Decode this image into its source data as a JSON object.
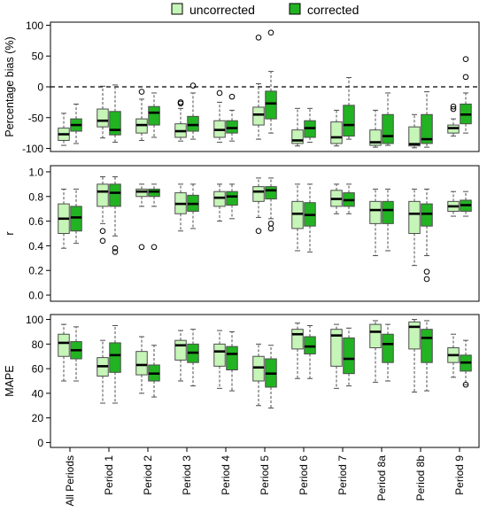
{
  "colors": {
    "uncorrected": "#c6f5b8",
    "corrected": "#22b322",
    "stroke": "#000000",
    "box_stroke": "#4d4d4d",
    "refline": "#000000"
  },
  "legend": {
    "position": "top-center",
    "items": [
      {
        "label": "uncorrected",
        "color_key": "uncorrected"
      },
      {
        "label": "corrected",
        "color_key": "corrected"
      }
    ]
  },
  "chart_data": [
    {
      "type": "boxplot",
      "id": "bias",
      "ylabel": "Percentage bias (%)",
      "xlabel": "",
      "ylim": [
        -105,
        105
      ],
      "yticks": [
        -100,
        -50,
        0,
        50,
        100
      ],
      "grid": false,
      "reference_line": {
        "y": 0,
        "style": "dashed"
      },
      "categories": [
        "All Periods",
        "Period 1",
        "Period 2",
        "Period 3",
        "Period 4",
        "Period 5",
        "Period 6",
        "Period 7",
        "Period 8a",
        "Period 8b",
        "Period 9"
      ],
      "series": [
        {
          "name": "uncorrected",
          "boxes": [
            {
              "min": -95,
              "q1": -87,
              "median": -77,
              "q3": -67,
              "max": -43,
              "outliers": []
            },
            {
              "min": -83,
              "q1": -65,
              "median": -55,
              "q3": -36,
              "max": 1,
              "outliers": []
            },
            {
              "min": -87,
              "q1": -75,
              "median": -62,
              "q3": -52,
              "max": -20,
              "outliers": [
                -8
              ]
            },
            {
              "min": -88,
              "q1": -82,
              "median": -72,
              "q3": -60,
              "max": -35,
              "outliers": [
                -25,
                -27
              ]
            },
            {
              "min": -90,
              "q1": -82,
              "median": -70,
              "q3": -55,
              "max": -25,
              "outliers": [
                -10
              ]
            },
            {
              "min": -85,
              "q1": -62,
              "median": -45,
              "q3": -33,
              "max": 5,
              "outliers": [
                80
              ]
            },
            {
              "min": -96,
              "q1": -92,
              "median": -87,
              "q3": -70,
              "max": -35,
              "outliers": []
            },
            {
              "min": -96,
              "q1": -92,
              "median": -82,
              "q3": -57,
              "max": -38,
              "outliers": []
            },
            {
              "min": -98,
              "q1": -95,
              "median": -90,
              "q3": -70,
              "max": -38,
              "outliers": []
            },
            {
              "min": -99,
              "q1": -96,
              "median": -93,
              "q3": -65,
              "max": -45,
              "outliers": []
            },
            {
              "min": -80,
              "q1": -75,
              "median": -67,
              "q3": -62,
              "max": -52,
              "outliers": [
                -32,
                -36
              ]
            }
          ]
        },
        {
          "name": "corrected",
          "boxes": [
            {
              "min": -92,
              "q1": -72,
              "median": -62,
              "q3": -52,
              "max": -28,
              "outliers": []
            },
            {
              "min": -90,
              "q1": -78,
              "median": -70,
              "q3": -40,
              "max": 3,
              "outliers": []
            },
            {
              "min": -82,
              "q1": -62,
              "median": -42,
              "q3": -32,
              "max": -10,
              "outliers": []
            },
            {
              "min": -85,
              "q1": -72,
              "median": -62,
              "q3": -48,
              "max": -10,
              "outliers": [
                2
              ]
            },
            {
              "min": -88,
              "q1": -75,
              "median": -67,
              "q3": -55,
              "max": -38,
              "outliers": [
                -16
              ]
            },
            {
              "min": -75,
              "q1": -52,
              "median": -27,
              "q3": -7,
              "max": 25,
              "outliers": [
                88
              ]
            },
            {
              "min": -90,
              "q1": -82,
              "median": -67,
              "q3": -55,
              "max": -35,
              "outliers": []
            },
            {
              "min": -85,
              "q1": -80,
              "median": -62,
              "q3": -30,
              "max": 15,
              "outliers": []
            },
            {
              "min": -95,
              "q1": -92,
              "median": -80,
              "q3": -45,
              "max": -10,
              "outliers": []
            },
            {
              "min": -98,
              "q1": -92,
              "median": -85,
              "q3": -45,
              "max": -8,
              "outliers": []
            },
            {
              "min": -75,
              "q1": -60,
              "median": -45,
              "q3": -28,
              "max": -10,
              "outliers": [
                16,
                45
              ]
            }
          ]
        }
      ]
    },
    {
      "type": "boxplot",
      "id": "r",
      "ylabel": "r",
      "xlabel": "",
      "ylim": [
        -0.05,
        1.05
      ],
      "yticks": [
        0.0,
        0.2,
        0.4,
        0.6,
        0.8,
        1.0
      ],
      "grid": false,
      "categories": [
        "All Periods",
        "Period 1",
        "Period 2",
        "Period 3",
        "Period 4",
        "Period 5",
        "Period 6",
        "Period 7",
        "Period 8a",
        "Period 8b",
        "Period 9"
      ],
      "series": [
        {
          "name": "uncorrected",
          "boxes": [
            {
              "min": 0.38,
              "q1": 0.5,
              "median": 0.62,
              "q3": 0.74,
              "max": 0.86,
              "outliers": []
            },
            {
              "min": 0.58,
              "q1": 0.72,
              "median": 0.84,
              "q3": 0.9,
              "max": 0.96,
              "outliers": [
                0.52,
                0.44
              ]
            },
            {
              "min": 0.72,
              "q1": 0.8,
              "median": 0.84,
              "q3": 0.86,
              "max": 0.9,
              "outliers": [
                0.39
              ]
            },
            {
              "min": 0.52,
              "q1": 0.66,
              "median": 0.74,
              "q3": 0.83,
              "max": 0.9,
              "outliers": []
            },
            {
              "min": 0.6,
              "q1": 0.72,
              "median": 0.79,
              "q3": 0.84,
              "max": 0.9,
              "outliers": []
            },
            {
              "min": 0.63,
              "q1": 0.76,
              "median": 0.84,
              "q3": 0.88,
              "max": 0.95,
              "outliers": [
                0.52
              ]
            },
            {
              "min": 0.36,
              "q1": 0.54,
              "median": 0.66,
              "q3": 0.76,
              "max": 0.9,
              "outliers": []
            },
            {
              "min": 0.66,
              "q1": 0.72,
              "median": 0.78,
              "q3": 0.85,
              "max": 0.9,
              "outliers": []
            },
            {
              "min": 0.32,
              "q1": 0.58,
              "median": 0.69,
              "q3": 0.76,
              "max": 0.86,
              "outliers": []
            },
            {
              "min": 0.24,
              "q1": 0.5,
              "median": 0.66,
              "q3": 0.76,
              "max": 0.86,
              "outliers": []
            },
            {
              "min": 0.64,
              "q1": 0.68,
              "median": 0.72,
              "q3": 0.76,
              "max": 0.84,
              "outliers": []
            }
          ]
        },
        {
          "name": "corrected",
          "boxes": [
            {
              "min": 0.42,
              "q1": 0.52,
              "median": 0.63,
              "q3": 0.72,
              "max": 0.86,
              "outliers": []
            },
            {
              "min": 0.48,
              "q1": 0.72,
              "median": 0.83,
              "q3": 0.9,
              "max": 0.96,
              "outliers": [
                0.38,
                0.35
              ]
            },
            {
              "min": 0.72,
              "q1": 0.8,
              "median": 0.84,
              "q3": 0.86,
              "max": 0.9,
              "outliers": [
                0.39
              ]
            },
            {
              "min": 0.54,
              "q1": 0.68,
              "median": 0.74,
              "q3": 0.81,
              "max": 0.9,
              "outliers": []
            },
            {
              "min": 0.62,
              "q1": 0.73,
              "median": 0.8,
              "q3": 0.84,
              "max": 0.9,
              "outliers": []
            },
            {
              "min": 0.62,
              "q1": 0.78,
              "median": 0.85,
              "q3": 0.88,
              "max": 0.95,
              "outliers": [
                0.58,
                0.54
              ]
            },
            {
              "min": 0.35,
              "q1": 0.56,
              "median": 0.65,
              "q3": 0.75,
              "max": 0.9,
              "outliers": []
            },
            {
              "min": 0.66,
              "q1": 0.72,
              "median": 0.77,
              "q3": 0.83,
              "max": 0.9,
              "outliers": []
            },
            {
              "min": 0.36,
              "q1": 0.58,
              "median": 0.69,
              "q3": 0.76,
              "max": 0.86,
              "outliers": []
            },
            {
              "min": 0.32,
              "q1": 0.56,
              "median": 0.66,
              "q3": 0.74,
              "max": 0.86,
              "outliers": [
                0.19,
                0.13
              ]
            },
            {
              "min": 0.64,
              "q1": 0.68,
              "median": 0.73,
              "q3": 0.77,
              "max": 0.84,
              "outliers": []
            }
          ]
        }
      ]
    },
    {
      "type": "boxplot",
      "id": "mape",
      "ylabel": "MAPE",
      "xlabel": "",
      "ylim": [
        -4,
        104
      ],
      "yticks": [
        0,
        20,
        40,
        60,
        80,
        100
      ],
      "grid": false,
      "categories": [
        "All Periods",
        "Period 1",
        "Period 2",
        "Period 3",
        "Period 4",
        "Period 5",
        "Period 6",
        "Period 7",
        "Period 8a",
        "Period 8b",
        "Period 9"
      ],
      "series": [
        {
          "name": "uncorrected",
          "boxes": [
            {
              "min": 50,
              "q1": 70,
              "median": 81,
              "q3": 88,
              "max": 96,
              "outliers": []
            },
            {
              "min": 32,
              "q1": 54,
              "median": 62,
              "q3": 69,
              "max": 83,
              "outliers": []
            },
            {
              "min": 40,
              "q1": 55,
              "median": 63,
              "q3": 74,
              "max": 86,
              "outliers": []
            },
            {
              "min": 50,
              "q1": 67,
              "median": 79,
              "q3": 83,
              "max": 91,
              "outliers": []
            },
            {
              "min": 44,
              "q1": 62,
              "median": 74,
              "q3": 80,
              "max": 91,
              "outliers": []
            },
            {
              "min": 30,
              "q1": 50,
              "median": 61,
              "q3": 70,
              "max": 80,
              "outliers": []
            },
            {
              "min": 52,
              "q1": 76,
              "median": 88,
              "q3": 92,
              "max": 97,
              "outliers": []
            },
            {
              "min": 44,
              "q1": 62,
              "median": 87,
              "q3": 92,
              "max": 96,
              "outliers": []
            },
            {
              "min": 49,
              "q1": 77,
              "median": 90,
              "q3": 96,
              "max": 99,
              "outliers": []
            },
            {
              "min": 41,
              "q1": 76,
              "median": 94,
              "q3": 98,
              "max": 100,
              "outliers": []
            },
            {
              "min": 53,
              "q1": 65,
              "median": 71,
              "q3": 77,
              "max": 88,
              "outliers": []
            }
          ]
        },
        {
          "name": "corrected",
          "boxes": [
            {
              "min": 50,
              "q1": 68,
              "median": 75,
              "q3": 82,
              "max": 94,
              "outliers": []
            },
            {
              "min": 32,
              "q1": 57,
              "median": 71,
              "q3": 81,
              "max": 95,
              "outliers": []
            },
            {
              "min": 37,
              "q1": 50,
              "median": 56,
              "q3": 63,
              "max": 79,
              "outliers": []
            },
            {
              "min": 46,
              "q1": 65,
              "median": 73,
              "q3": 80,
              "max": 92,
              "outliers": []
            },
            {
              "min": 42,
              "q1": 59,
              "median": 72,
              "q3": 78,
              "max": 90,
              "outliers": []
            },
            {
              "min": 28,
              "q1": 45,
              "median": 56,
              "q3": 68,
              "max": 79,
              "outliers": []
            },
            {
              "min": 52,
              "q1": 72,
              "median": 78,
              "q3": 86,
              "max": 95,
              "outliers": []
            },
            {
              "min": 46,
              "q1": 56,
              "median": 68,
              "q3": 85,
              "max": 93,
              "outliers": []
            },
            {
              "min": 50,
              "q1": 65,
              "median": 80,
              "q3": 88,
              "max": 96,
              "outliers": []
            },
            {
              "min": 42,
              "q1": 65,
              "median": 85,
              "q3": 92,
              "max": 99,
              "outliers": []
            },
            {
              "min": 47,
              "q1": 58,
              "median": 65,
              "q3": 71,
              "max": 83,
              "outliers": [
                47
              ]
            }
          ]
        }
      ]
    }
  ]
}
